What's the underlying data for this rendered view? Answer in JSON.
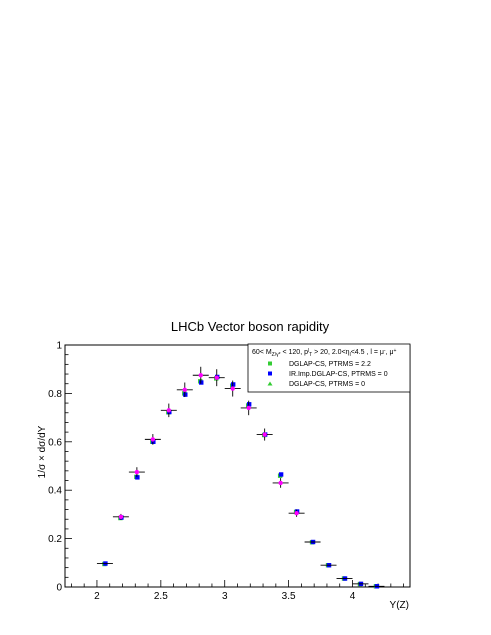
{
  "chart_data": {
    "type": "scatter",
    "title": "LHCb Vector boson rapidity",
    "xlabel": "Y(Z)",
    "ylabel": "1/σ × dσ/dY",
    "xlim": [
      1.75,
      4.45
    ],
    "ylim": [
      0,
      1
    ],
    "x_ticks": [
      "2",
      "2.5",
      "3",
      "3.5",
      "4"
    ],
    "y_ticks": [
      "0",
      "0.2",
      "0.4",
      "0.6",
      "0.8",
      "1"
    ],
    "grid": false,
    "legend_placement": "top-right",
    "legend_header": "60< M_{Z/γ*} < 120, p^l_T > 20, 2.0<η_l<4.5 , l = μ⁻, μ⁺",
    "legend_header_parts": {
      "p1": "60< M",
      "s1": "Z/γ*",
      "p2": " < 120, p",
      "sup": "l",
      "s2": "T",
      "p3": " > 20, 2.0<η",
      "s3": "l",
      "p4": "<4.5 , l = μ",
      "sup2": "-",
      "p5": ", μ",
      "sup3": "+"
    },
    "data_points": {
      "x": [
        2.0625,
        2.1875,
        2.3125,
        2.4375,
        2.5625,
        2.6875,
        2.8125,
        2.9375,
        3.0625,
        3.1875,
        3.3125,
        3.4375,
        3.5625,
        3.6875,
        3.8125,
        3.9375,
        4.0625,
        4.1875
      ],
      "y": [
        null,
        0.29,
        0.475,
        0.61,
        0.73,
        0.815,
        0.875,
        0.865,
        0.82,
        0.74,
        0.63,
        0.43,
        0.305,
        null,
        null,
        null,
        null,
        null
      ],
      "yerr": [
        0,
        0.012,
        0.02,
        0.022,
        0.028,
        0.03,
        0.035,
        0.035,
        0.033,
        0.03,
        0.025,
        0.02,
        0.015,
        0,
        0,
        0,
        0,
        0
      ],
      "xerr": 0.0625,
      "color": "#000000",
      "marker_color": "#ff00ff"
    },
    "series": [
      {
        "name": "DGLAP-CS, PTRMS = 2.2",
        "color": "#33cc33",
        "marker": "square",
        "x": [
          2.0625,
          2.1875,
          2.3125,
          2.4375,
          2.5625,
          2.6875,
          2.8125,
          2.9375,
          3.0625,
          3.1875,
          3.3125,
          3.4375,
          3.5625,
          3.6875,
          3.8125,
          3.9375,
          4.0625,
          4.1875
        ],
        "values": [
          0.095,
          0.285,
          0.455,
          0.6,
          0.722,
          0.8,
          0.85,
          0.862,
          0.832,
          0.75,
          0.628,
          0.46,
          0.31,
          0.185,
          0.09,
          0.035,
          0.012,
          0.003
        ]
      },
      {
        "name": "IR.Imp.DGLAP-CS, PTRMS = 0",
        "color": "#0000ff",
        "marker": "square",
        "x": [
          2.0625,
          2.1875,
          2.3125,
          2.4375,
          2.5625,
          2.6875,
          2.8125,
          2.9375,
          3.0625,
          3.1875,
          3.3125,
          3.4375,
          3.5625,
          3.6875,
          3.8125,
          3.9375,
          4.0625,
          4.1875
        ],
        "values": [
          0.097,
          0.287,
          0.453,
          0.6,
          0.723,
          0.795,
          0.845,
          0.868,
          0.837,
          0.755,
          0.63,
          0.465,
          0.312,
          0.186,
          0.09,
          0.035,
          0.013,
          0.003
        ]
      },
      {
        "name": "DGLAP-CS, PTRMS = 0",
        "color": "#33cc33",
        "marker": "triangle",
        "x": [],
        "values": []
      }
    ]
  }
}
